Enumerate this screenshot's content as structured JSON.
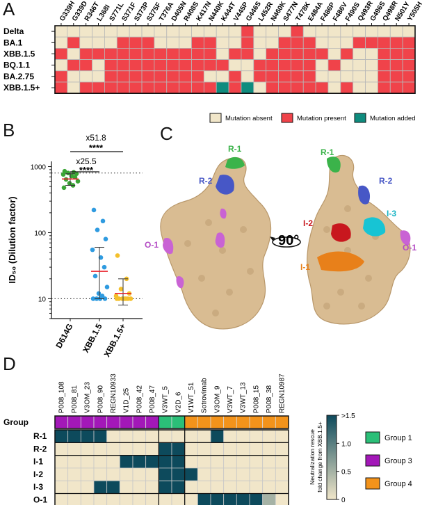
{
  "panels": {
    "a": "A",
    "b": "B",
    "c": "C",
    "d": "D"
  },
  "colors": {
    "absent": "#f1e6c9",
    "present": "#f0434a",
    "added": "#0f8c7e",
    "group1": "#2bbf78",
    "group3": "#a318b8",
    "group4": "#f3931b",
    "heatHigh": "#0d4a5c",
    "heatLow": "#f1e6c9",
    "gridline": "#b8b8b8",
    "d614g": "#3aa535",
    "xbb15": "#2f9be0",
    "xbb15p": "#f4c02c",
    "medianLine": "#e8202a"
  },
  "chart_data": [
    {
      "type": "heatmap",
      "id": "panel_a",
      "columns": [
        "G339H",
        "G339D",
        "R346T",
        "L368I",
        "S771L",
        "S371F",
        "S373P",
        "S375F",
        "T376A",
        "D405N",
        "R408S",
        "K417N",
        "N440K",
        "K444T",
        "V445P",
        "G446S",
        "L452R",
        "N460K",
        "S477N",
        "T478K",
        "E484A",
        "F486P",
        "F486V",
        "F490S",
        "Q493R",
        "G496S",
        "Q498R",
        "N501Y",
        "Y505H"
      ],
      "rows": [
        "Delta",
        "BA.1",
        "XBB.1.5",
        "BQ.1.1",
        "BA.2.75",
        "XBB.1.5+"
      ],
      "values": [
        [
          0,
          0,
          0,
          0,
          0,
          0,
          0,
          0,
          0,
          0,
          0,
          0,
          0,
          0,
          0,
          1,
          0,
          0,
          0,
          1,
          0,
          0,
          0,
          0,
          0,
          0,
          0,
          0,
          0
        ],
        [
          0,
          1,
          0,
          0,
          0,
          1,
          1,
          1,
          0,
          0,
          0,
          1,
          1,
          0,
          0,
          1,
          0,
          0,
          1,
          1,
          1,
          0,
          0,
          0,
          1,
          1,
          1,
          1,
          1
        ],
        [
          1,
          0,
          1,
          1,
          1,
          1,
          1,
          1,
          1,
          1,
          1,
          1,
          1,
          0,
          1,
          1,
          0,
          1,
          1,
          1,
          1,
          1,
          0,
          1,
          0,
          0,
          1,
          1,
          1
        ],
        [
          0,
          1,
          1,
          0,
          1,
          1,
          1,
          1,
          1,
          1,
          1,
          1,
          1,
          1,
          0,
          0,
          1,
          1,
          1,
          1,
          1,
          0,
          1,
          0,
          0,
          0,
          1,
          1,
          1
        ],
        [
          1,
          0,
          0,
          0,
          1,
          1,
          1,
          1,
          1,
          1,
          1,
          1,
          0,
          0,
          1,
          0,
          1,
          1,
          1,
          1,
          1,
          0,
          0,
          0,
          0,
          0,
          1,
          1,
          1
        ],
        [
          1,
          0,
          1,
          1,
          1,
          1,
          1,
          1,
          1,
          1,
          1,
          1,
          1,
          2,
          1,
          2,
          0,
          1,
          1,
          1,
          1,
          1,
          0,
          1,
          0,
          0,
          1,
          1,
          1
        ]
      ],
      "legend": [
        {
          "code": 0,
          "label": "Mutation absent"
        },
        {
          "code": 1,
          "label": "Mutation present"
        },
        {
          "code": 2,
          "label": "Mutation added"
        }
      ]
    },
    {
      "type": "scatter",
      "id": "panel_b",
      "ylabel": "ID₅₀ (Dilution factor)",
      "yscale": "log",
      "ylim": [
        5,
        1200
      ],
      "yticks": [
        10,
        100,
        1000
      ],
      "ytick_labels": [
        "10",
        "100",
        "1000"
      ],
      "reference_lines": [
        10,
        800
      ],
      "categories": [
        "D614G",
        "XBB.1.5",
        "XBB.1.5+"
      ],
      "series": [
        {
          "name": "D614G",
          "values": [
            850,
            820,
            800,
            780,
            760,
            720,
            690,
            640,
            600,
            560,
            520,
            480
          ],
          "median": 650,
          "err": [
            520,
            780
          ]
        },
        {
          "name": "XBB.1.5",
          "values": [
            220,
            150,
            110,
            80,
            55,
            42,
            30,
            22,
            15,
            12,
            11,
            10,
            10,
            10,
            10
          ],
          "median": 26,
          "err": [
            10,
            60
          ]
        },
        {
          "name": "XBB.1.5+",
          "values": [
            45,
            20,
            14,
            12,
            11,
            10,
            10,
            10,
            10,
            10,
            10,
            10
          ],
          "median": 12,
          "err": [
            8,
            20
          ]
        }
      ],
      "comparisons": [
        {
          "label": "x25.5",
          "stars": "****"
        },
        {
          "label": "x51.8",
          "stars": "****"
        }
      ]
    },
    {
      "type": "heatmap",
      "id": "panel_d",
      "columns": [
        "P008_108",
        "P008_81",
        "V3OM_23",
        "P008_90",
        "REGN10933",
        "V1D_25",
        "P008_42",
        "P008_47",
        "V3WT_5",
        "V2D_6",
        "V1WT_51",
        "Sotrovimab",
        "V3OM_9",
        "V3WT_7",
        "V3WT_13",
        "P008_15",
        "P008_38",
        "REGN10987"
      ],
      "group_row_label": "Group",
      "groups": [
        3,
        3,
        3,
        3,
        3,
        3,
        3,
        3,
        1,
        1,
        4,
        4,
        4,
        4,
        4,
        4,
        4,
        4
      ],
      "rows": [
        "R-1",
        "R-2",
        "I-1",
        "I-2",
        "I-3",
        "O-1"
      ],
      "values": [
        [
          1.5,
          1.5,
          1.5,
          1.5,
          0,
          0,
          0,
          0,
          0,
          0,
          0,
          0,
          1.5,
          0,
          0,
          0,
          0,
          0
        ],
        [
          0,
          0,
          0,
          0,
          0,
          0,
          0,
          0,
          1.5,
          1.5,
          0,
          0,
          0,
          0,
          0,
          0,
          0,
          0
        ],
        [
          0,
          0,
          0,
          0,
          0,
          1.5,
          1.5,
          1.5,
          1.5,
          1.5,
          0,
          0,
          0,
          0,
          0,
          0,
          0,
          0
        ],
        [
          0,
          0,
          0,
          0,
          0,
          0,
          0,
          0,
          1.5,
          1.5,
          1.5,
          0,
          0,
          0,
          0,
          0,
          0,
          0
        ],
        [
          0,
          0,
          0,
          1.5,
          1.5,
          0,
          0,
          0,
          1.5,
          1.5,
          0,
          0,
          0,
          0,
          0,
          0,
          0,
          0
        ],
        [
          0,
          0,
          0,
          0,
          0,
          0,
          0,
          0,
          0,
          0,
          0,
          1.5,
          1.5,
          1.5,
          1.5,
          1.5,
          0.5,
          0
        ]
      ],
      "colorbar_label": "Neutralization rescue fold change from XBB.1.5+",
      "colorbar_ticks": [
        ">1.5",
        "1.0",
        "0.5",
        "0"
      ],
      "legend": [
        {
          "group": 1,
          "label": "Group 1"
        },
        {
          "group": 3,
          "label": "Group 3"
        },
        {
          "group": 4,
          "label": "Group 4"
        }
      ]
    }
  ],
  "structure": {
    "rotation_label": "90°",
    "left_regions": [
      "R-1",
      "R-2",
      "O-1"
    ],
    "right_regions": [
      "R-1",
      "R-2",
      "I-3",
      "I-2",
      "I-1",
      "O-1"
    ]
  }
}
